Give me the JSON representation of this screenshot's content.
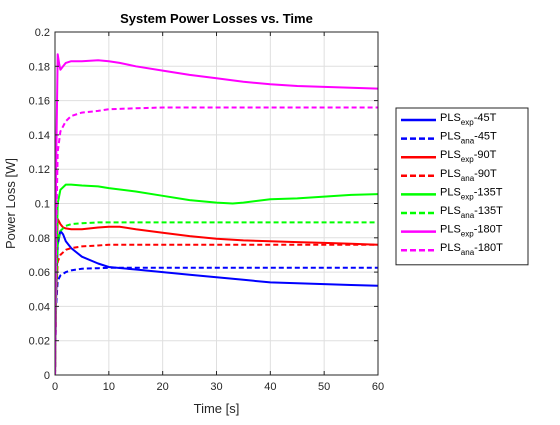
{
  "chart_data": {
    "type": "line",
    "title": "System Power Losses vs. Time",
    "xlabel": "Time [s]",
    "ylabel": "Power Loss [W]",
    "xlim": [
      0,
      60
    ],
    "ylim": [
      0,
      0.2
    ],
    "xticks": [
      0,
      10,
      20,
      30,
      40,
      50,
      60
    ],
    "yticks": [
      0,
      0.02,
      0.04,
      0.06,
      0.08,
      0.1,
      0.12,
      0.14,
      0.16,
      0.18,
      0.2
    ],
    "grid": true,
    "legend_position": "outside-right",
    "series": [
      {
        "name": "PLSexp-45T",
        "legend": {
          "base": "PLS",
          "sub": "exp",
          "suffix": "-45T"
        },
        "color": "#0000ff",
        "style": "solid",
        "x": [
          0,
          0.2,
          0.5,
          1,
          1.5,
          2,
          3,
          5,
          8,
          10,
          15,
          20,
          25,
          30,
          35,
          40,
          45,
          50,
          55,
          60
        ],
        "y": [
          0,
          0.045,
          0.076,
          0.084,
          0.082,
          0.078,
          0.074,
          0.069,
          0.065,
          0.063,
          0.0615,
          0.06,
          0.0585,
          0.057,
          0.0555,
          0.054,
          0.0535,
          0.053,
          0.0525,
          0.052
        ]
      },
      {
        "name": "PLSana-45T",
        "legend": {
          "base": "PLS",
          "sub": "ana",
          "suffix": "-45T"
        },
        "color": "#0000ff",
        "style": "dashed",
        "x": [
          0,
          0.2,
          0.5,
          1,
          2,
          3,
          5,
          8,
          10,
          15,
          20,
          30,
          40,
          50,
          60
        ],
        "y": [
          0,
          0.04,
          0.055,
          0.058,
          0.06,
          0.061,
          0.062,
          0.0623,
          0.0625,
          0.0625,
          0.0625,
          0.0625,
          0.0625,
          0.0625,
          0.0625
        ]
      },
      {
        "name": "PLSexp-90T",
        "legend": {
          "base": "PLS",
          "sub": "exp",
          "suffix": "-90T"
        },
        "color": "#ff0000",
        "style": "solid",
        "x": [
          0,
          0.2,
          0.5,
          1,
          1.5,
          2,
          3,
          5,
          8,
          10,
          12,
          15,
          20,
          25,
          30,
          35,
          40,
          45,
          50,
          55,
          60
        ],
        "y": [
          0,
          0.05,
          0.091,
          0.088,
          0.086,
          0.0855,
          0.085,
          0.085,
          0.086,
          0.0865,
          0.0865,
          0.085,
          0.083,
          0.081,
          0.0795,
          0.0785,
          0.078,
          0.0775,
          0.077,
          0.0765,
          0.076
        ]
      },
      {
        "name": "PLSana-90T",
        "legend": {
          "base": "PLS",
          "sub": "ana",
          "suffix": "-90T"
        },
        "color": "#ff0000",
        "style": "dashed",
        "x": [
          0,
          0.2,
          0.5,
          1,
          2,
          3,
          5,
          8,
          10,
          15,
          20,
          30,
          40,
          50,
          60
        ],
        "y": [
          0,
          0.045,
          0.066,
          0.07,
          0.073,
          0.074,
          0.075,
          0.0755,
          0.076,
          0.076,
          0.076,
          0.076,
          0.076,
          0.076,
          0.076
        ]
      },
      {
        "name": "PLSexp-135T",
        "legend": {
          "base": "PLS",
          "sub": "exp",
          "suffix": "-135T"
        },
        "color": "#00ff00",
        "style": "solid",
        "x": [
          0,
          0.2,
          0.5,
          1,
          2,
          3,
          5,
          8,
          10,
          15,
          20,
          25,
          30,
          33,
          35,
          40,
          45,
          50,
          55,
          60
        ],
        "y": [
          0,
          0.06,
          0.1,
          0.108,
          0.111,
          0.111,
          0.1105,
          0.11,
          0.109,
          0.107,
          0.1045,
          0.102,
          0.1005,
          0.1,
          0.1005,
          0.1025,
          0.103,
          0.104,
          0.105,
          0.1055
        ]
      },
      {
        "name": "PLSana-135T",
        "legend": {
          "base": "PLS",
          "sub": "ana",
          "suffix": "-135T"
        },
        "color": "#00ff00",
        "style": "dashed",
        "x": [
          0,
          0.2,
          0.5,
          1,
          2,
          3,
          5,
          8,
          10,
          15,
          20,
          30,
          40,
          50,
          60
        ],
        "y": [
          0,
          0.05,
          0.078,
          0.084,
          0.087,
          0.088,
          0.0885,
          0.089,
          0.089,
          0.089,
          0.089,
          0.089,
          0.089,
          0.089,
          0.089
        ]
      },
      {
        "name": "PLSexp-180T",
        "legend": {
          "base": "PLS",
          "sub": "exp",
          "suffix": "-180T"
        },
        "color": "#ff00ff",
        "style": "solid",
        "x": [
          0,
          0.2,
          0.5,
          0.8,
          1,
          1.5,
          2,
          3,
          5,
          8,
          10,
          12,
          15,
          20,
          25,
          30,
          35,
          40,
          45,
          50,
          55,
          60
        ],
        "y": [
          0,
          0.12,
          0.187,
          0.181,
          0.178,
          0.18,
          0.182,
          0.183,
          0.183,
          0.1835,
          0.183,
          0.182,
          0.18,
          0.1775,
          0.175,
          0.173,
          0.171,
          0.1695,
          0.1685,
          0.168,
          0.1675,
          0.167
        ]
      },
      {
        "name": "PLSana-180T",
        "legend": {
          "base": "PLS",
          "sub": "ana",
          "suffix": "-180T"
        },
        "color": "#ff00ff",
        "style": "dashed",
        "x": [
          0,
          0.2,
          0.5,
          1,
          2,
          3,
          5,
          8,
          10,
          15,
          20,
          30,
          40,
          50,
          60
        ],
        "y": [
          0,
          0.08,
          0.13,
          0.142,
          0.148,
          0.151,
          0.153,
          0.154,
          0.155,
          0.1555,
          0.156,
          0.156,
          0.156,
          0.156,
          0.156
        ]
      }
    ]
  }
}
